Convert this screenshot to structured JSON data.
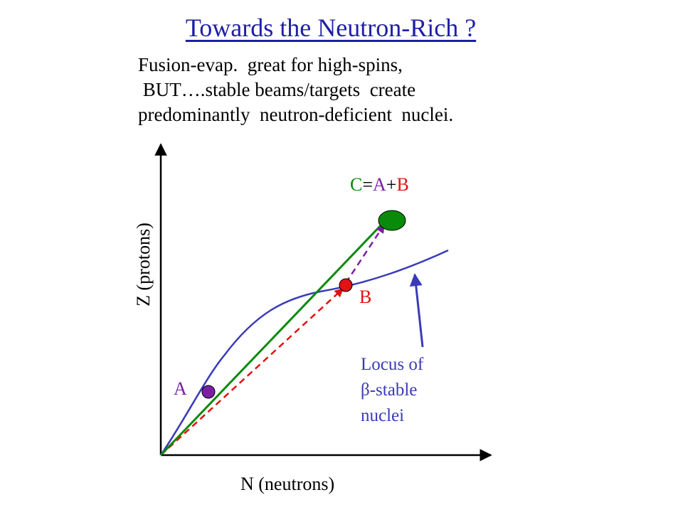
{
  "slide": {
    "title": "Towards the Neutron-Rich ?",
    "subtitle_lines": [
      "Fusion-evap.  great for high-spins,",
      " BUT….stable beams/targets  create",
      "predominantly  neutron-deficient  nuclei."
    ]
  },
  "diagram": {
    "y_axis_label": "Z (protons)",
    "x_axis_label": "N (neutrons)",
    "point_a_label": "A",
    "point_b_label": "B",
    "point_c_label": {
      "c": "C",
      "eq": "=",
      "a": "A",
      "plus": "+",
      "b": "B"
    },
    "locus_lines": [
      "Locus of",
      "β-stable",
      "nuclei"
    ],
    "colors": {
      "title": "#1f1fa8",
      "stability_curve": "#3a3ab8",
      "point_a": "#7b1fa2",
      "point_b": "#e11212",
      "point_c": "#0a8a0a",
      "vector_a": "#0a8a0a",
      "vector_b": "#e11212",
      "vector_ab_to_c": "#7b1fa2"
    }
  }
}
